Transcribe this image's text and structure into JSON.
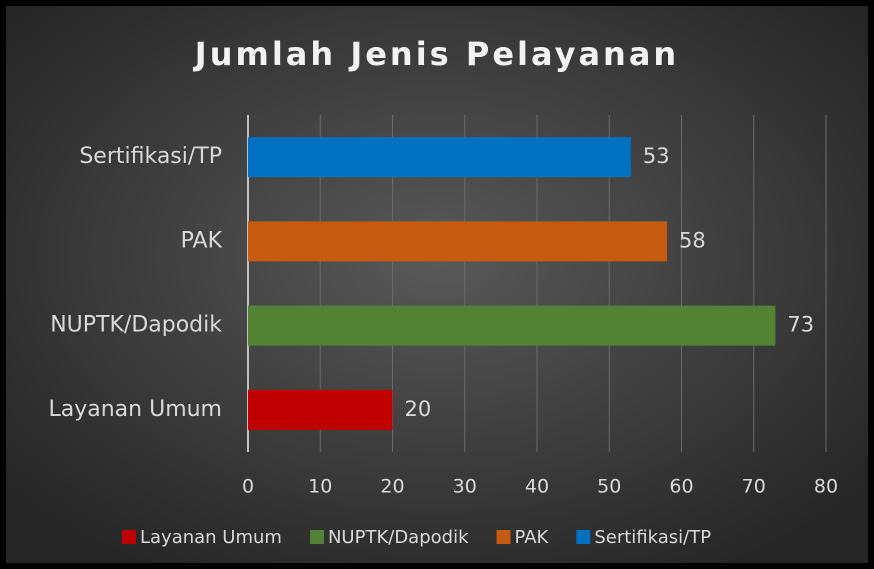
{
  "chart_data": {
    "type": "barh",
    "title": "Jumlah Jenis Pelayanan",
    "categories": [
      "Layanan Umum",
      "NUPTK/Dapodik",
      "PAK",
      "Sertifikasi/TP"
    ],
    "values": [
      20,
      73,
      58,
      53
    ],
    "colors": [
      "#c00000",
      "#548235",
      "#c55a11",
      "#0070c0"
    ],
    "xlim": [
      0,
      80
    ],
    "xticks": [
      0,
      10,
      20,
      30,
      40,
      50,
      60,
      70,
      80
    ],
    "grid": true,
    "legend": "bottom"
  }
}
